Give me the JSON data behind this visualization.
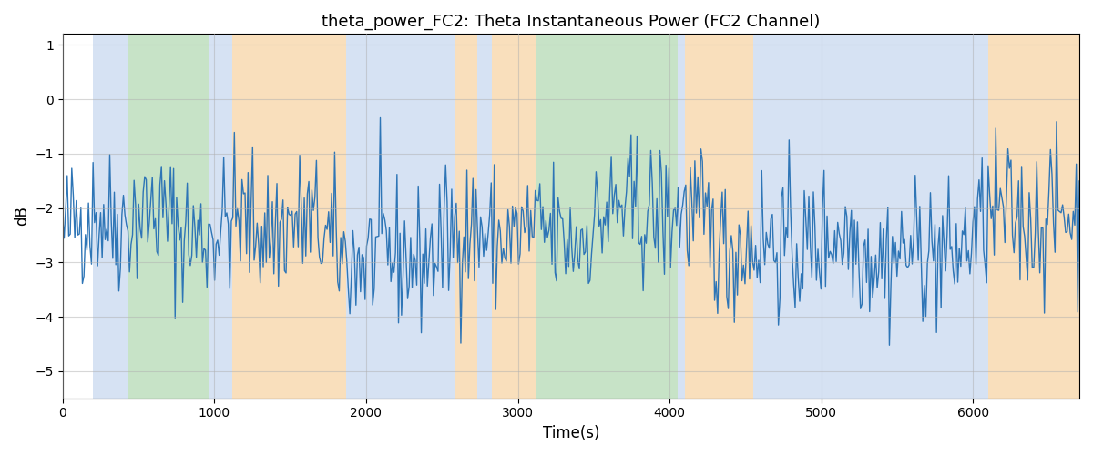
{
  "title": "theta_power_FC2: Theta Instantaneous Power (FC2 Channel)",
  "xlabel": "Time(s)",
  "ylabel": "dB",
  "xlim": [
    0,
    6700
  ],
  "ylim": [
    -5.5,
    1.2
  ],
  "yticks": [
    1,
    0,
    -1,
    -2,
    -3,
    -4,
    -5
  ],
  "line_color": "#2e75b6",
  "line_width": 1.0,
  "background_regions": [
    {
      "xmin": 200,
      "xmax": 430,
      "color": "#aec6e8",
      "alpha": 0.5
    },
    {
      "xmin": 430,
      "xmax": 960,
      "color": "#90c890",
      "alpha": 0.5
    },
    {
      "xmin": 960,
      "xmax": 1120,
      "color": "#aec6e8",
      "alpha": 0.5
    },
    {
      "xmin": 1120,
      "xmax": 1870,
      "color": "#f4c07a",
      "alpha": 0.5
    },
    {
      "xmin": 1870,
      "xmax": 2580,
      "color": "#aec6e8",
      "alpha": 0.5
    },
    {
      "xmin": 2580,
      "xmax": 2730,
      "color": "#f4c07a",
      "alpha": 0.5
    },
    {
      "xmin": 2730,
      "xmax": 2830,
      "color": "#aec6e8",
      "alpha": 0.5
    },
    {
      "xmin": 2830,
      "xmax": 3120,
      "color": "#f4c07a",
      "alpha": 0.5
    },
    {
      "xmin": 3120,
      "xmax": 4050,
      "color": "#90c890",
      "alpha": 0.5
    },
    {
      "xmin": 4050,
      "xmax": 4100,
      "color": "#aec6e8",
      "alpha": 0.5
    },
    {
      "xmin": 4100,
      "xmax": 4550,
      "color": "#f4c07a",
      "alpha": 0.5
    },
    {
      "xmin": 4550,
      "xmax": 6100,
      "color": "#aec6e8",
      "alpha": 0.5
    },
    {
      "xmin": 6100,
      "xmax": 6700,
      "color": "#f4c07a",
      "alpha": 0.5
    }
  ],
  "grid_color": "#b0b0b0",
  "grid_alpha": 0.5,
  "seed": 42,
  "n_points": 670,
  "signal_mean": -2.5,
  "signal_std": 0.65,
  "figsize": [
    12,
    5
  ],
  "dpi": 100
}
